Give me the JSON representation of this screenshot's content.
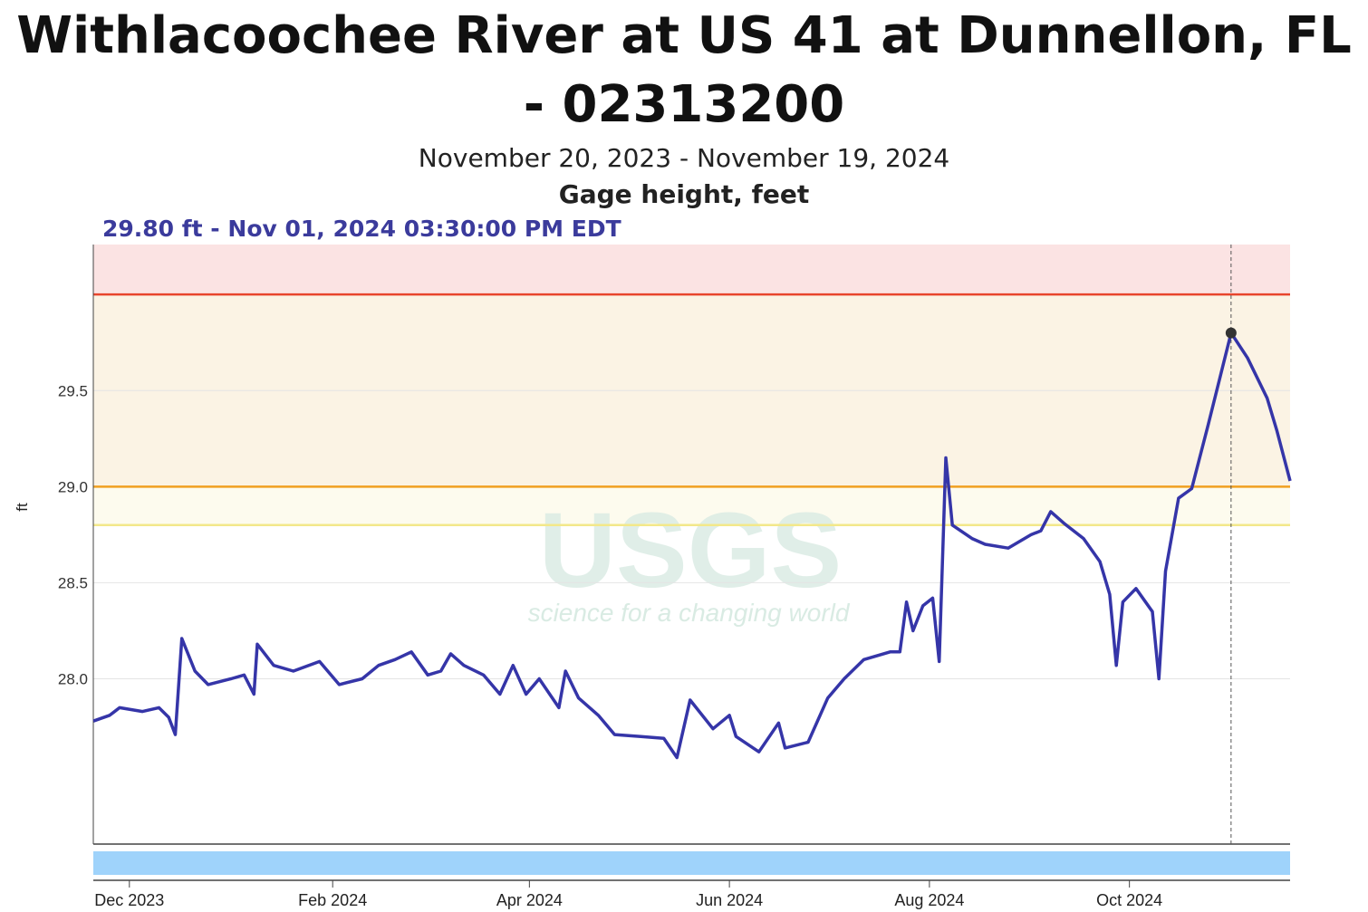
{
  "chart_data": {
    "type": "line",
    "title": "Withlacoochee River at US 41 at Dunnellon, FL - 02313200",
    "subtitle": "November 20, 2023 - November 19, 2024",
    "unit_label": "Gage height, feet",
    "annotation": "29.80 ft - Nov 01, 2024 03:30:00 PM EDT",
    "highlight": {
      "x": "2024-11-01",
      "value": 29.8,
      "color": "#333333"
    },
    "y_label": "ft",
    "watermark": "USGS",
    "watermark_tagline": "science for a changing world",
    "xlim": [
      "2023-11-20",
      "2024-11-19"
    ],
    "xticks": [
      {
        "value": "2023-12-01",
        "label": "Dec 2023"
      },
      {
        "value": "2024-02-01",
        "label": "Feb 2024"
      },
      {
        "value": "2024-04-01",
        "label": "Apr 2024"
      },
      {
        "value": "2024-06-01",
        "label": "Jun 2024"
      },
      {
        "value": "2024-08-01",
        "label": "Aug 2024"
      },
      {
        "value": "2024-10-01",
        "label": "Oct 2024"
      }
    ],
    "ylim": [
      27.14,
      30.26
    ],
    "yticks": [
      {
        "value": 28,
        "label": "28.0"
      },
      28.5,
      {
        "value": 29,
        "label": "29.0"
      },
      29.5
    ],
    "grid": true,
    "thresholds": [
      {
        "value": 28.8,
        "color": "#f3e88a",
        "band_color": "#fdfbee"
      },
      {
        "value": 29.0,
        "color": "#f0a020",
        "band_color": "#fbf3e4"
      },
      {
        "value": 30.0,
        "color": "#e8452c",
        "band_color": "#fbe3e3"
      }
    ],
    "x": [
      "2023-11-20",
      "2023-11-25",
      "2023-11-28",
      "2023-12-05",
      "2023-12-10",
      "2023-12-13",
      "2023-12-15",
      "2023-12-17",
      "2023-12-21",
      "2023-12-25",
      "2024-01-01",
      "2024-01-05",
      "2024-01-08",
      "2024-01-09",
      "2024-01-14",
      "2024-01-20",
      "2024-01-28",
      "2024-02-03",
      "2024-02-10",
      "2024-02-15",
      "2024-02-20",
      "2024-02-25",
      "2024-03-01",
      "2024-03-05",
      "2024-03-08",
      "2024-03-12",
      "2024-03-18",
      "2024-03-23",
      "2024-03-27",
      "2024-03-31",
      "2024-04-04",
      "2024-04-10",
      "2024-04-12",
      "2024-04-16",
      "2024-04-22",
      "2024-04-27",
      "2024-05-05",
      "2024-05-12",
      "2024-05-16",
      "2024-05-20",
      "2024-05-27",
      "2024-06-01",
      "2024-06-03",
      "2024-06-10",
      "2024-06-16",
      "2024-06-18",
      "2024-06-25",
      "2024-07-01",
      "2024-07-06",
      "2024-07-12",
      "2024-07-20",
      "2024-07-23",
      "2024-07-25",
      "2024-07-27",
      "2024-07-30",
      "2024-08-02",
      "2024-08-04",
      "2024-08-06",
      "2024-08-08",
      "2024-08-14",
      "2024-08-18",
      "2024-08-25",
      "2024-09-01",
      "2024-09-04",
      "2024-09-07",
      "2024-09-11",
      "2024-09-17",
      "2024-09-22",
      "2024-09-25",
      "2024-09-27",
      "2024-09-29",
      "2024-10-03",
      "2024-10-08",
      "2024-10-10",
      "2024-10-12",
      "2024-10-16",
      "2024-10-20",
      "2024-10-25",
      "2024-11-01",
      "2024-11-06",
      "2024-11-12",
      "2024-11-15",
      "2024-11-19"
    ],
    "series": [
      {
        "name": "Gage height",
        "color": "#3535a8",
        "values": [
          27.78,
          27.81,
          27.85,
          27.83,
          27.85,
          27.8,
          27.71,
          28.21,
          28.04,
          27.97,
          28.0,
          28.02,
          27.92,
          28.18,
          28.07,
          28.04,
          28.09,
          27.97,
          28.0,
          28.07,
          28.1,
          28.14,
          28.02,
          28.04,
          28.13,
          28.07,
          28.02,
          27.92,
          28.07,
          27.92,
          28.0,
          27.85,
          28.04,
          27.9,
          27.81,
          27.71,
          27.7,
          27.69,
          27.59,
          27.89,
          27.74,
          27.81,
          27.7,
          27.62,
          27.77,
          27.64,
          27.67,
          27.9,
          28.0,
          28.1,
          28.14,
          28.14,
          28.4,
          28.25,
          28.38,
          28.42,
          28.09,
          29.15,
          28.8,
          28.73,
          28.7,
          28.68,
          28.75,
          28.77,
          28.87,
          28.81,
          28.73,
          28.61,
          28.44,
          28.07,
          28.4,
          28.47,
          28.35,
          28.0,
          28.56,
          28.94,
          28.99,
          29.32,
          29.8,
          29.67,
          29.46,
          29.29,
          29.03
        ]
      }
    ]
  }
}
